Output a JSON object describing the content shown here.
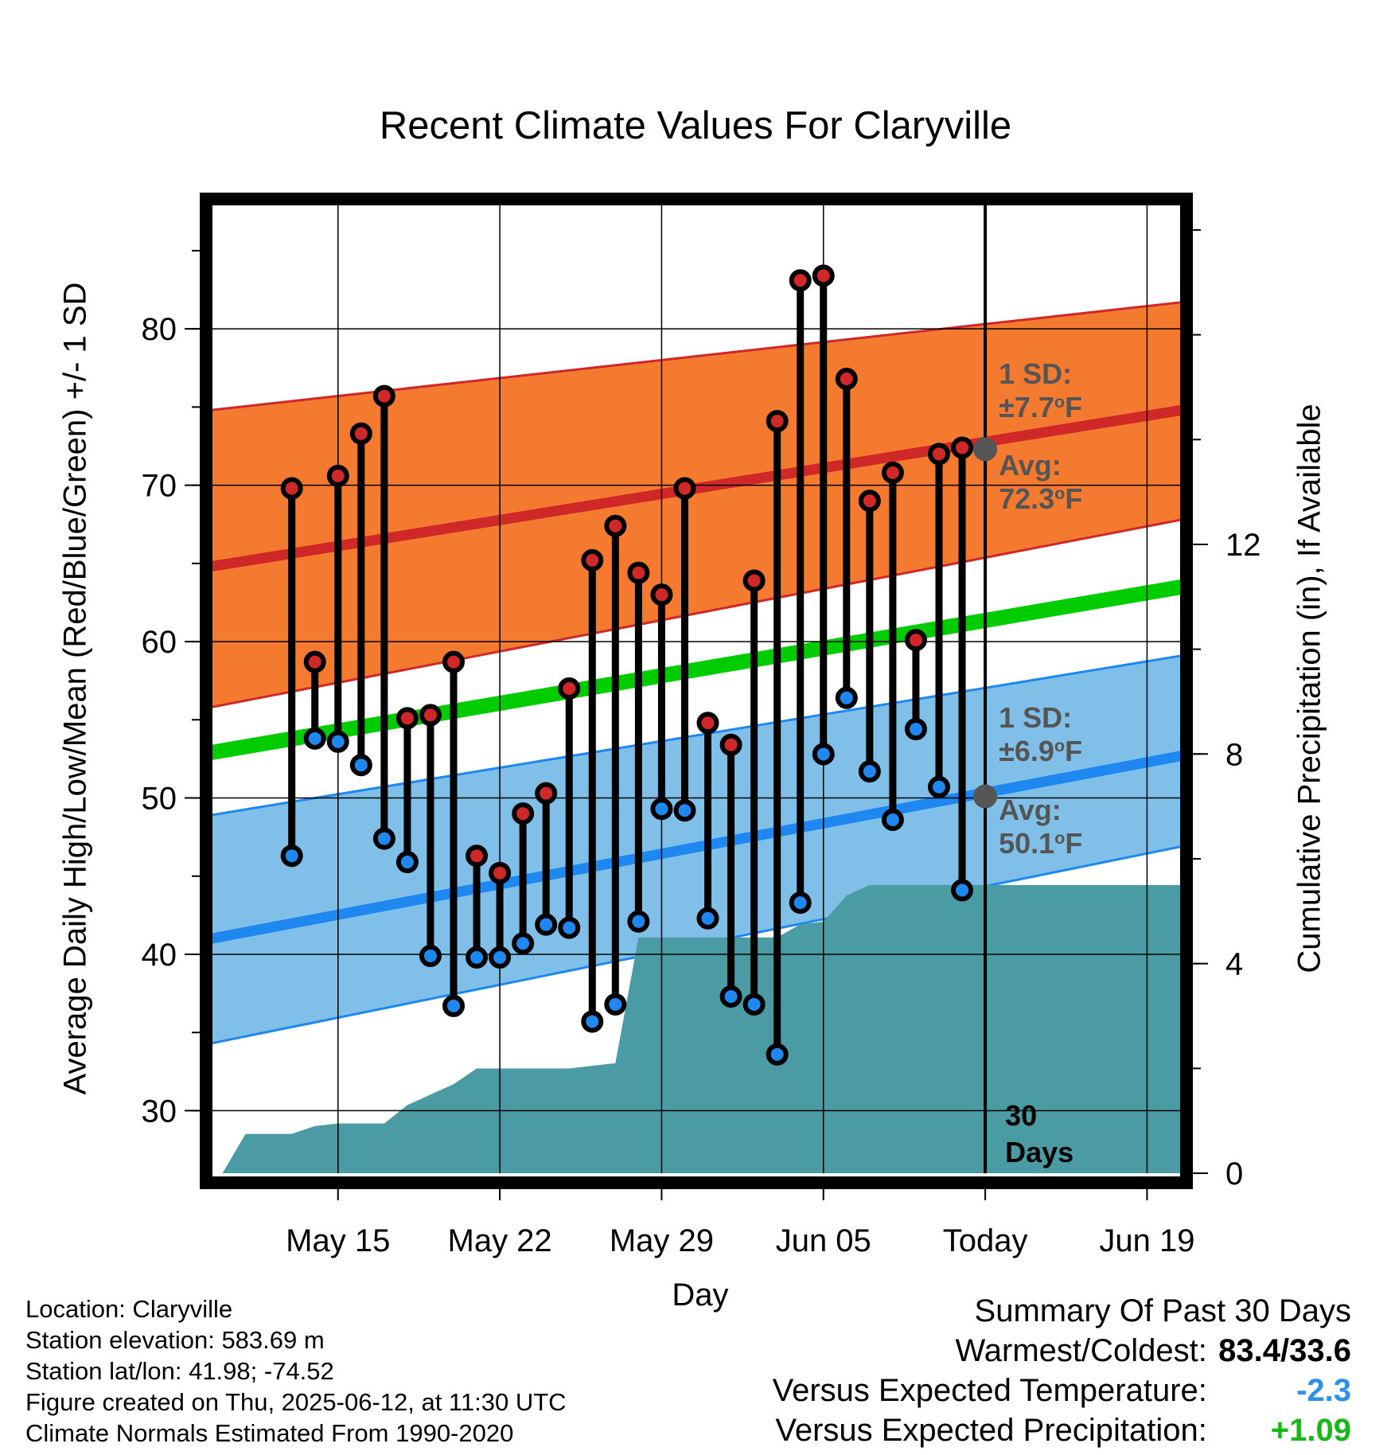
{
  "title": "Recent Climate Values For Claryville",
  "chart_data": {
    "type": "line",
    "title": "Recent Climate Values For Claryville",
    "xlabel": "Day",
    "ylabel": "Average Daily High/Low/Mean (Red/Blue/Green) +/- 1 SD",
    "y2label": "Cumulative Precipitation (in), If Available",
    "x_tick_labels": [
      "May 15",
      "May 22",
      "May 29",
      "Jun 05",
      "Today",
      "Jun 19"
    ],
    "ylim": [
      26,
      88
    ],
    "yticks": [
      30,
      40,
      50,
      60,
      70,
      80
    ],
    "y2lim": [
      0,
      18.5
    ],
    "y2ticks": [
      0,
      4,
      8,
      12
    ],
    "x_day_range": [
      -33.5,
      8.5
    ],
    "grid": true,
    "daily_high": [
      69.8,
      58.7,
      70.6,
      73.3,
      75.7,
      55.1,
      55.3,
      58.7,
      46.3,
      45.2,
      49.0,
      50.3,
      57.0,
      65.2,
      67.4,
      64.4,
      63.0,
      69.8,
      54.8,
      53.4,
      63.9,
      74.1,
      83.1,
      83.4,
      76.8,
      69.0,
      70.8,
      60.1,
      72.0,
      72.4
    ],
    "daily_low": [
      46.3,
      53.8,
      53.6,
      52.1,
      47.4,
      45.9,
      39.9,
      36.7,
      39.8,
      39.8,
      40.7,
      41.9,
      41.7,
      35.7,
      36.8,
      42.1,
      49.3,
      49.2,
      42.3,
      37.3,
      36.8,
      33.6,
      43.3,
      52.8,
      56.4,
      51.7,
      48.6,
      54.4,
      50.7,
      44.1
    ],
    "normals": {
      "high_avg_start": 64.8,
      "high_avg_end": 74.8,
      "high_sd_band_start": [
        55.8,
        74.8
      ],
      "high_sd_band_end": [
        67.8,
        81.7
      ],
      "mean_avg_start": 52.9,
      "mean_avg_end": 63.5,
      "low_avg_start": 41.0,
      "low_avg_end": 52.7,
      "low_sd_band_start": [
        34.3,
        48.9
      ],
      "low_sd_band_end": [
        46.9,
        59.1
      ]
    },
    "cumulative_precip": [
      [
        -33,
        0.0
      ],
      [
        -32,
        0.75
      ],
      [
        -31,
        0.75
      ],
      [
        -30,
        0.75
      ],
      [
        -29,
        0.9
      ],
      [
        -28,
        0.95
      ],
      [
        -27,
        0.95
      ],
      [
        -26,
        0.95
      ],
      [
        -25,
        1.3
      ],
      [
        -24,
        1.5
      ],
      [
        -23,
        1.7
      ],
      [
        -22,
        2.0
      ],
      [
        -21,
        2.0
      ],
      [
        -20,
        2.0
      ],
      [
        -19,
        2.0
      ],
      [
        -18,
        2.0
      ],
      [
        -17,
        2.05
      ],
      [
        -16,
        2.1
      ],
      [
        -15,
        4.5
      ],
      [
        -14,
        4.5
      ],
      [
        -13,
        4.5
      ],
      [
        -12,
        4.5
      ],
      [
        -11,
        4.5
      ],
      [
        -10,
        4.5
      ],
      [
        -9,
        4.5
      ],
      [
        -8,
        4.75
      ],
      [
        -7,
        4.8
      ],
      [
        -6,
        5.3
      ],
      [
        -5,
        5.5
      ],
      [
        -4,
        5.5
      ],
      [
        -3,
        5.5
      ],
      [
        -2,
        5.5
      ],
      [
        -1,
        5.5
      ],
      [
        0,
        5.5
      ],
      [
        8.5,
        5.5
      ]
    ],
    "annotations": {
      "high_sd": "1 SD:\n±7.7°F",
      "high_avg": "Avg:\n72.3°F",
      "today_high_avg": 72.3,
      "low_sd": "1 SD:\n±6.9°F",
      "low_avg": "Avg:\n50.1°F",
      "today_low_avg": 50.1,
      "days_label": "30\nDays"
    },
    "colors": {
      "high_band": "#f47a30",
      "high_line": "#d02828",
      "mean_line": "#00cc00",
      "low_band": "#80c0e8",
      "low_line": "#1e88f0",
      "precip": "#4a9ba3",
      "high_marker": "#d02828",
      "low_marker": "#1e88f0",
      "annotation_text": "#555555"
    }
  },
  "meta": {
    "location": "Location: Claryville",
    "elevation": "Station elevation: 583.69 m",
    "latlon": "Station lat/lon: 41.98; -74.52",
    "created": "Figure created on Thu, 2025-06-12, at 11:30 UTC",
    "normals": "Climate Normals Estimated From 1990-2020"
  },
  "summary": {
    "heading": "Summary Of Past 30 Days",
    "warmest_label": "Warmest/Coldest:",
    "warmest_value": "83.4/33.6",
    "temp_label": "Versus Expected Temperature:",
    "temp_value": "-2.3",
    "precip_label": "Versus Expected Precipitation:",
    "precip_value": "+1.09"
  }
}
